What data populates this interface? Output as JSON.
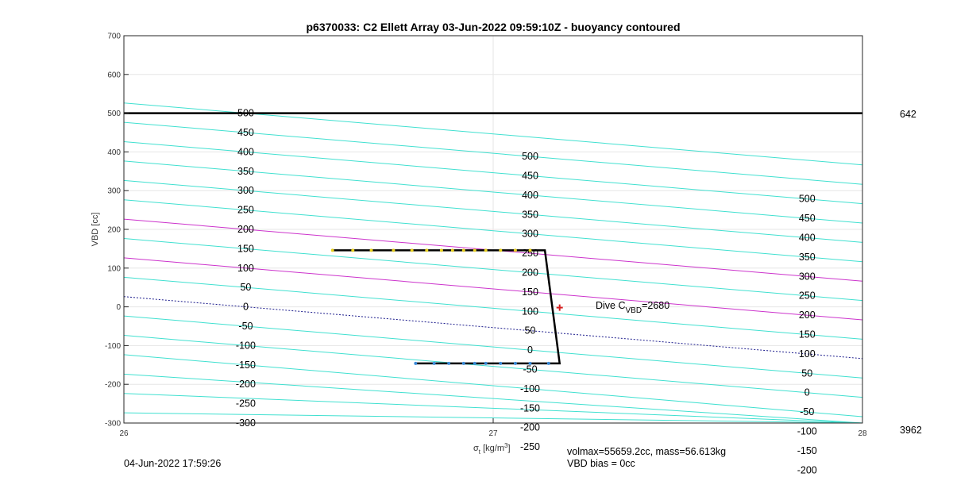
{
  "chart_data": {
    "type": "line",
    "title": "p6370033: C2 Ellett Array 03-Jun-2022 09:59:10Z - buoyancy contoured",
    "xlabel": {
      "sym": "σ",
      "sub": "t",
      "unit": " [kg/m",
      "sup": "3",
      "close": "]"
    },
    "ylabel": "VBD [cc]",
    "xlim": [
      26,
      28
    ],
    "ylim": [
      -300,
      700
    ],
    "xticks": [
      26,
      27,
      28
    ],
    "yticks": [
      -300,
      -200,
      -100,
      0,
      100,
      200,
      300,
      400,
      500,
      600,
      700
    ],
    "grid": true,
    "colors": {
      "contour": "#40e0d0",
      "highlight": "#cc33cc",
      "zero": "#1c1c8c",
      "path": "#000000",
      "ascent_pts": "#e8d020",
      "descent_pts": "#3a8ad8",
      "marker": "#d62020"
    },
    "contour_levels": [
      -300,
      -250,
      -200,
      -150,
      -100,
      -50,
      0,
      50,
      100,
      150,
      200,
      250,
      300,
      350,
      400,
      450,
      500
    ],
    "highlight_levels": [
      100,
      200
    ],
    "contour_slope_per_sigma": -80,
    "contour_anchor_sigma": 26.33,
    "contour_label_columns": [
      {
        "sigma": 26.33,
        "labels": [
          {
            "level": 500,
            "text": "500"
          },
          {
            "level": 450,
            "text": "450"
          },
          {
            "level": 400,
            "text": "400"
          },
          {
            "level": 350,
            "text": "350"
          },
          {
            "level": 300,
            "text": "300"
          },
          {
            "level": 250,
            "text": "250"
          },
          {
            "level": 200,
            "text": "200"
          },
          {
            "level": 150,
            "text": "150"
          },
          {
            "level": 100,
            "text": "100"
          },
          {
            "level": 50,
            "text": "50"
          },
          {
            "level": 0,
            "text": "0"
          },
          {
            "level": -50,
            "text": "-50"
          },
          {
            "level": -100,
            "text": "-100"
          },
          {
            "level": -150,
            "text": "-150"
          },
          {
            "level": -200,
            "text": "-200"
          },
          {
            "level": -250,
            "text": "-250"
          },
          {
            "level": -300,
            "text": "-300"
          }
        ]
      },
      {
        "sigma": 27.1,
        "labels": [
          {
            "level": 450,
            "text": "500"
          },
          {
            "level": 400,
            "text": "450"
          },
          {
            "level": 350,
            "text": "400"
          },
          {
            "level": 300,
            "text": "350"
          },
          {
            "level": 250,
            "text": "300"
          },
          {
            "level": 200,
            "text": "250"
          },
          {
            "level": 150,
            "text": "200"
          },
          {
            "level": 100,
            "text": "150"
          },
          {
            "level": 50,
            "text": "100"
          },
          {
            "level": 0,
            "text": "50"
          },
          {
            "level": -50,
            "text": "0"
          },
          {
            "level": -100,
            "text": "-50"
          },
          {
            "level": -150,
            "text": "-100"
          },
          {
            "level": -200,
            "text": "-150"
          },
          {
            "level": -250,
            "text": "-200"
          },
          {
            "level": -300,
            "text": "-250"
          }
        ]
      },
      {
        "sigma": 27.85,
        "labels": [
          {
            "level": 400,
            "text": "500"
          },
          {
            "level": 350,
            "text": "450"
          },
          {
            "level": 300,
            "text": "400"
          },
          {
            "level": 250,
            "text": "350"
          },
          {
            "level": 200,
            "text": "300"
          },
          {
            "level": 150,
            "text": "250"
          },
          {
            "level": 100,
            "text": "200"
          },
          {
            "level": 50,
            "text": "150"
          },
          {
            "level": 0,
            "text": "100"
          },
          {
            "level": -50,
            "text": "50"
          },
          {
            "level": -100,
            "text": "0"
          },
          {
            "level": -150,
            "text": "-50"
          },
          {
            "level": -200,
            "text": "-100"
          },
          {
            "level": -250,
            "text": "-150"
          },
          {
            "level": -300,
            "text": "-200"
          }
        ]
      }
    ],
    "max_vbd_line": {
      "y": 500
    },
    "series": [
      {
        "x": [
          26.565,
          27.14,
          27.18,
          26.79
        ],
        "y": [
          146,
          146,
          -146,
          -146
        ]
      }
    ],
    "ascent_points": {
      "x": [
        26.565,
        26.62,
        26.67,
        26.73,
        26.78,
        26.82,
        26.86,
        26.89,
        26.92,
        26.95,
        26.98,
        27.02,
        27.06,
        27.1
      ],
      "y": [
        146,
        146,
        146,
        146,
        146,
        146,
        146,
        146,
        146,
        146,
        146,
        146,
        146,
        146
      ]
    },
    "descent_points": {
      "x": [
        26.79,
        26.84,
        26.88,
        26.92,
        26.95,
        26.98,
        27.02,
        27.06,
        27.1,
        27.15
      ],
      "y": [
        -146,
        -146,
        -146,
        -146,
        -146,
        -146,
        -146,
        -146,
        -146,
        -146
      ]
    },
    "dive_marker": {
      "x": 27.18,
      "y": -2
    },
    "annotation": {
      "base": "Dive C",
      "sub": "VBD",
      "tail": "=2680"
    },
    "right_labels": {
      "top": "642",
      "bottom": "3962"
    },
    "footer": {
      "timestamp": "04-Jun-2022 17:59:26",
      "volmax": "volmax=55659.2cc, mass=56.613kg",
      "bias": "VBD bias = 0cc"
    }
  }
}
